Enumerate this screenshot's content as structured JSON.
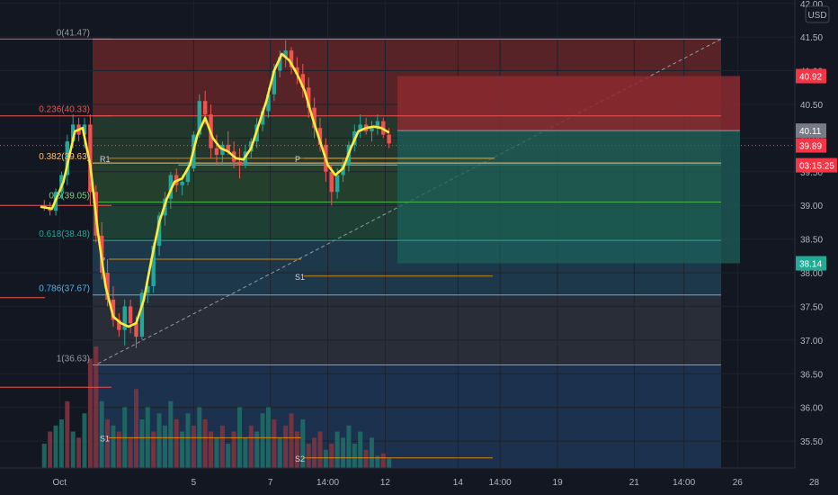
{
  "chart_data": {
    "type": "candlestick",
    "currency_label": "USD",
    "ylim": [
      35.1,
      42.05
    ],
    "y_ticks": [
      "35.50",
      "36.00",
      "36.50",
      "37.00",
      "37.50",
      "38.00",
      "38.50",
      "39.00",
      "39.50",
      "40.00",
      "40.50",
      "41.00",
      "41.50",
      "42.00"
    ],
    "x_ticks": [
      {
        "label": "Oct",
        "x": 0.5
      },
      {
        "label": "5",
        "x": 4.0
      },
      {
        "label": "7",
        "x": 6.0
      },
      {
        "label": "14:00",
        "x": 7.5
      },
      {
        "label": "12",
        "x": 9.0
      },
      {
        "label": "14",
        "x": 10.9
      },
      {
        "label": "14:00",
        "x": 12.0
      },
      {
        "label": "19",
        "x": 13.5
      },
      {
        "label": "21",
        "x": 15.5
      },
      {
        "label": "14:00",
        "x": 16.8
      },
      {
        "label": "26",
        "x": 18.2
      },
      {
        "label": "28",
        "x": 20.2
      }
    ],
    "candles": [
      [
        0.1,
        39.0,
        39.08,
        38.92,
        38.97
      ],
      [
        0.25,
        38.97,
        39.05,
        38.85,
        38.92
      ],
      [
        0.4,
        38.92,
        39.25,
        38.85,
        39.2
      ],
      [
        0.55,
        39.2,
        39.5,
        39.1,
        39.45
      ],
      [
        0.7,
        39.45,
        40.05,
        39.3,
        39.95
      ],
      [
        0.85,
        39.95,
        40.35,
        39.85,
        40.2
      ],
      [
        1.0,
        40.2,
        40.3,
        39.95,
        40.05
      ],
      [
        1.15,
        40.05,
        40.3,
        39.85,
        40.2
      ],
      [
        1.3,
        40.2,
        40.35,
        39.0,
        39.2
      ],
      [
        1.45,
        39.2,
        39.3,
        38.45,
        38.55
      ],
      [
        1.6,
        38.55,
        38.75,
        37.9,
        38.0
      ],
      [
        1.75,
        38.0,
        38.2,
        37.5,
        37.6
      ],
      [
        1.9,
        37.6,
        37.8,
        37.2,
        37.3
      ],
      [
        2.05,
        37.3,
        37.4,
        37.05,
        37.15
      ],
      [
        2.2,
        37.15,
        37.6,
        36.92,
        37.5
      ],
      [
        2.35,
        37.5,
        37.6,
        37.1,
        37.25
      ],
      [
        2.5,
        37.25,
        37.35,
        36.88,
        37.05
      ],
      [
        2.65,
        37.05,
        37.75,
        37.0,
        37.7
      ],
      [
        2.8,
        37.7,
        37.85,
        37.55,
        37.8
      ],
      [
        2.95,
        37.8,
        38.45,
        37.7,
        38.4
      ],
      [
        3.1,
        38.4,
        38.9,
        38.25,
        38.85
      ],
      [
        3.25,
        38.85,
        39.2,
        38.7,
        39.1
      ],
      [
        3.4,
        39.1,
        39.5,
        38.95,
        39.45
      ],
      [
        3.55,
        39.45,
        39.55,
        39.2,
        39.3
      ],
      [
        3.7,
        39.3,
        39.45,
        39.15,
        39.35
      ],
      [
        3.85,
        39.35,
        39.65,
        39.3,
        39.55
      ],
      [
        4.0,
        39.55,
        40.1,
        39.5,
        40.05
      ],
      [
        4.15,
        40.05,
        40.65,
        40.0,
        40.55
      ],
      [
        4.3,
        40.55,
        40.7,
        40.2,
        40.35
      ],
      [
        4.45,
        40.35,
        40.5,
        39.7,
        39.85
      ],
      [
        4.6,
        39.85,
        40.05,
        39.6,
        39.75
      ],
      [
        4.75,
        39.75,
        39.95,
        39.6,
        39.9
      ],
      [
        4.9,
        39.9,
        40.1,
        39.75,
        39.8
      ],
      [
        5.05,
        39.8,
        39.95,
        39.55,
        39.65
      ],
      [
        5.2,
        39.65,
        39.85,
        39.4,
        39.6
      ],
      [
        5.35,
        39.6,
        39.9,
        39.55,
        39.8
      ],
      [
        5.5,
        39.8,
        40.0,
        39.7,
        39.95
      ],
      [
        5.65,
        39.95,
        40.3,
        39.85,
        40.2
      ],
      [
        5.8,
        40.2,
        40.45,
        40.1,
        40.4
      ],
      [
        5.95,
        40.4,
        40.75,
        40.3,
        40.65
      ],
      [
        6.1,
        40.65,
        41.1,
        40.55,
        41.0
      ],
      [
        6.25,
        41.0,
        41.3,
        40.9,
        41.2
      ],
      [
        6.4,
        41.2,
        41.45,
        41.05,
        41.3
      ],
      [
        6.55,
        41.3,
        41.35,
        40.95,
        41.05
      ],
      [
        6.7,
        41.05,
        41.2,
        40.8,
        40.95
      ],
      [
        6.85,
        40.95,
        41.1,
        40.6,
        40.75
      ],
      [
        7.0,
        40.75,
        40.9,
        40.3,
        40.45
      ],
      [
        7.15,
        40.45,
        40.6,
        40.0,
        40.15
      ],
      [
        7.3,
        40.15,
        40.3,
        39.8,
        39.9
      ],
      [
        7.45,
        39.9,
        40.0,
        39.35,
        39.5
      ],
      [
        7.6,
        39.5,
        39.6,
        39.0,
        39.2
      ],
      [
        7.75,
        39.2,
        39.55,
        39.1,
        39.45
      ],
      [
        7.9,
        39.45,
        39.7,
        39.35,
        39.6
      ],
      [
        8.05,
        39.6,
        39.95,
        39.5,
        39.9
      ],
      [
        8.2,
        39.9,
        40.2,
        39.8,
        40.1
      ],
      [
        8.35,
        40.1,
        40.35,
        40.0,
        40.2
      ],
      [
        8.5,
        40.2,
        40.3,
        40.05,
        40.1
      ],
      [
        8.65,
        40.1,
        40.25,
        39.95,
        40.15
      ],
      [
        8.8,
        40.15,
        40.35,
        40.05,
        40.25
      ],
      [
        8.95,
        40.25,
        40.3,
        40.0,
        40.05
      ],
      [
        9.1,
        40.05,
        40.15,
        39.85,
        39.92
      ]
    ],
    "ema": [
      [
        0.0,
        38.98
      ],
      [
        0.3,
        38.95
      ],
      [
        0.6,
        39.35
      ],
      [
        0.9,
        40.1
      ],
      [
        1.1,
        40.15
      ],
      [
        1.3,
        39.6
      ],
      [
        1.5,
        38.6
      ],
      [
        1.7,
        37.8
      ],
      [
        1.9,
        37.35
      ],
      [
        2.1,
        37.25
      ],
      [
        2.3,
        37.2
      ],
      [
        2.5,
        37.25
      ],
      [
        2.7,
        37.6
      ],
      [
        2.9,
        38.2
      ],
      [
        3.1,
        38.75
      ],
      [
        3.3,
        39.1
      ],
      [
        3.5,
        39.35
      ],
      [
        3.7,
        39.4
      ],
      [
        3.9,
        39.6
      ],
      [
        4.1,
        40.05
      ],
      [
        4.3,
        40.3
      ],
      [
        4.5,
        40.0
      ],
      [
        4.7,
        39.85
      ],
      [
        4.9,
        39.8
      ],
      [
        5.1,
        39.7
      ],
      [
        5.3,
        39.68
      ],
      [
        5.5,
        39.85
      ],
      [
        5.7,
        40.2
      ],
      [
        5.9,
        40.55
      ],
      [
        6.1,
        41.0
      ],
      [
        6.3,
        41.25
      ],
      [
        6.5,
        41.15
      ],
      [
        6.7,
        40.95
      ],
      [
        6.9,
        40.7
      ],
      [
        7.1,
        40.3
      ],
      [
        7.3,
        39.95
      ],
      [
        7.5,
        39.6
      ],
      [
        7.7,
        39.45
      ],
      [
        7.9,
        39.55
      ],
      [
        8.1,
        39.85
      ],
      [
        8.3,
        40.1
      ],
      [
        8.5,
        40.15
      ],
      [
        8.7,
        40.17
      ],
      [
        8.9,
        40.15
      ],
      [
        9.1,
        40.08
      ]
    ],
    "volumes": [
      [
        0.1,
        0.2,
        1
      ],
      [
        0.25,
        0.3,
        0
      ],
      [
        0.4,
        0.35,
        1
      ],
      [
        0.55,
        0.4,
        1
      ],
      [
        0.7,
        0.55,
        0
      ],
      [
        0.85,
        0.3,
        1
      ],
      [
        1.0,
        0.25,
        0
      ],
      [
        1.15,
        0.45,
        1
      ],
      [
        1.3,
        0.9,
        0
      ],
      [
        1.45,
        1.0,
        0
      ],
      [
        1.6,
        0.55,
        1
      ],
      [
        1.75,
        0.4,
        0
      ],
      [
        1.9,
        0.35,
        1
      ],
      [
        2.05,
        0.3,
        0
      ],
      [
        2.2,
        0.5,
        1
      ],
      [
        2.35,
        0.25,
        0
      ],
      [
        2.5,
        0.65,
        0
      ],
      [
        2.65,
        0.4,
        1
      ],
      [
        2.8,
        0.5,
        1
      ],
      [
        2.95,
        0.3,
        0
      ],
      [
        3.1,
        0.45,
        1
      ],
      [
        3.25,
        0.35,
        1
      ],
      [
        3.4,
        0.55,
        1
      ],
      [
        3.55,
        0.4,
        0
      ],
      [
        3.7,
        0.3,
        1
      ],
      [
        3.85,
        0.45,
        1
      ],
      [
        4.0,
        0.35,
        0
      ],
      [
        4.15,
        0.5,
        1
      ],
      [
        4.3,
        0.4,
        0
      ],
      [
        4.45,
        0.3,
        0
      ],
      [
        4.6,
        0.25,
        1
      ],
      [
        4.75,
        0.35,
        0
      ],
      [
        4.9,
        0.2,
        1
      ],
      [
        5.05,
        0.3,
        0
      ],
      [
        5.2,
        0.5,
        1
      ],
      [
        5.35,
        0.25,
        1
      ],
      [
        5.5,
        0.35,
        0
      ],
      [
        5.65,
        0.3,
        1
      ],
      [
        5.8,
        0.45,
        1
      ],
      [
        5.95,
        0.5,
        1
      ],
      [
        6.1,
        0.4,
        0
      ],
      [
        6.25,
        0.25,
        1
      ],
      [
        6.4,
        0.35,
        0
      ],
      [
        6.55,
        0.45,
        0
      ],
      [
        6.7,
        0.3,
        0
      ],
      [
        6.85,
        0.4,
        1
      ],
      [
        7.0,
        0.2,
        0
      ],
      [
        7.15,
        0.25,
        0
      ],
      [
        7.3,
        0.3,
        0
      ],
      [
        7.45,
        0.15,
        1
      ],
      [
        7.6,
        0.2,
        0
      ],
      [
        7.75,
        0.3,
        1
      ],
      [
        7.9,
        0.25,
        1
      ],
      [
        8.05,
        0.35,
        1
      ],
      [
        8.2,
        0.2,
        1
      ],
      [
        8.35,
        0.3,
        1
      ],
      [
        8.5,
        0.15,
        0
      ],
      [
        8.65,
        0.25,
        1
      ],
      [
        8.8,
        0.1,
        1
      ],
      [
        8.95,
        0.12,
        0
      ],
      [
        9.1,
        0.08,
        1
      ]
    ],
    "fib_levels": [
      {
        "label": "0(41.47)",
        "value": 41.47,
        "zone_color": "#5c2428"
      },
      {
        "label": "0.236(40.33)",
        "value": 40.33,
        "zone_color": "#25392e"
      },
      {
        "label": "0.382(39.63)",
        "value": 39.63,
        "zone_color": "#25422e"
      },
      {
        "label": "0.5(39.05)",
        "value": 39.05,
        "zone_color": "#1f4236"
      },
      {
        "label": "0.618(38.48)",
        "value": 38.48,
        "zone_color": "#1e3a4e"
      },
      {
        "label": "0.786(37.67)",
        "value": 37.67,
        "zone_color": "#2a2e39"
      },
      {
        "label": "1(36.63)",
        "value": 36.63,
        "zone_color": "#1b3350"
      }
    ],
    "pivots": [
      {
        "label": "R1",
        "value": 39.7
      },
      {
        "label": "P",
        "value": 39.7
      },
      {
        "label": "P",
        "value": 38.2
      },
      {
        "label": "S1",
        "value": 37.95
      },
      {
        "label": "S1",
        "value": 35.55
      },
      {
        "label": "S2",
        "value": 35.25
      }
    ],
    "position": {
      "stop": 40.92,
      "entry": 40.11,
      "target": 38.14
    },
    "price_tags": [
      {
        "text": "40.92",
        "value": 40.92,
        "color": "#f23645"
      },
      {
        "text": "40.11",
        "value": 40.11,
        "color": "#787b86"
      },
      {
        "text": "39.89",
        "value": 39.89,
        "color": "#f23645"
      },
      {
        "text": "03:15:25",
        "value": 39.63,
        "color": "#f23645"
      },
      {
        "text": "38.14",
        "value": 38.14,
        "color": "#22ab94"
      }
    ],
    "up_color": "#26a69a",
    "down_color": "#ef5350",
    "ema_color": "#ffeb3b"
  }
}
